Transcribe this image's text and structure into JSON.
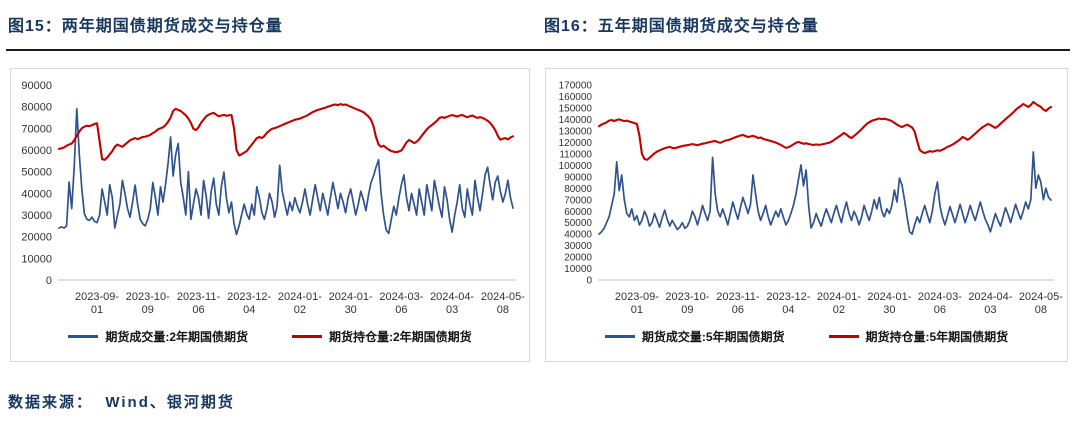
{
  "footer": {
    "source": "数据来源：  Wind、银河期货"
  },
  "chart_data": [
    {
      "type": "line",
      "title": "图15：两年期国债期货成交与持仓量",
      "grid": false,
      "legend_position": "bottom",
      "ylim": [
        0,
        90000
      ],
      "ytick_step": 10000,
      "x_tick_labels": [
        "2023-09-01",
        "2023-10-09",
        "2023-11-06",
        "2023-12-04",
        "2024-01-02",
        "2024-01-30",
        "2024-03-06",
        "2024-04-03",
        "2024-05-08"
      ],
      "x_ticks": [
        [
          "2023-09-",
          "01"
        ],
        [
          "2023-10-",
          "09"
        ],
        [
          "2023-11-",
          "06"
        ],
        [
          "2023-12-",
          "04"
        ],
        [
          "2024-01-",
          "02"
        ],
        [
          "2024-01-",
          "30"
        ],
        [
          "2024-03-",
          "06"
        ],
        [
          "2024-04-",
          "03"
        ],
        [
          "2024-05-",
          "08"
        ]
      ],
      "tick_indices": [
        15,
        35,
        55,
        75,
        95,
        115,
        135,
        155,
        175
      ],
      "series": [
        {
          "name": "期货成交量:2年期国债期货",
          "color": "#30538B",
          "stroke_width": 1.7,
          "values": [
            24000,
            24500,
            24000,
            25000,
            45200,
            33000,
            52000,
            79000,
            58000,
            42000,
            30500,
            28000,
            27500,
            29000,
            27000,
            26500,
            30000,
            42000,
            36000,
            30000,
            44000,
            38000,
            24000,
            29500,
            35000,
            46000,
            40000,
            33000,
            29000,
            36000,
            43800,
            35000,
            28000,
            26000,
            25000,
            28000,
            33000,
            45000,
            38000,
            30000,
            43000,
            36000,
            44000,
            54000,
            66000,
            48000,
            58000,
            63000,
            45000,
            38000,
            30000,
            50000,
            28000,
            35000,
            42000,
            38000,
            30000,
            46000,
            39000,
            28500,
            41000,
            47000,
            35000,
            30000,
            43000,
            49800,
            38000,
            31000,
            36000,
            26000,
            21000,
            25000,
            30000,
            35000,
            30500,
            28000,
            35000,
            30000,
            43000,
            38000,
            31000,
            28000,
            33000,
            40000,
            36000,
            29000,
            34000,
            53000,
            41000,
            35500,
            30000,
            36000,
            32000,
            38000,
            34000,
            31000,
            36000,
            42000,
            35000,
            30000,
            37000,
            44000,
            38000,
            32000,
            40000,
            35000,
            30000,
            38000,
            45000,
            39000,
            33000,
            40000,
            36000,
            31000,
            38000,
            42000,
            36000,
            30000,
            35000,
            41000,
            37000,
            32000,
            39000,
            45000,
            48000,
            52000,
            55500,
            40000,
            30000,
            23000,
            21500,
            28000,
            34000,
            30000,
            38000,
            44000,
            48500,
            38000,
            32000,
            40000,
            35000,
            30000,
            42000,
            36000,
            30000,
            44000,
            38000,
            32000,
            46000,
            40000,
            34000,
            29000,
            43000,
            37000,
            28000,
            22100,
            30000,
            36000,
            44000,
            33000,
            29000,
            42000,
            35000,
            30000,
            46000,
            38000,
            32000,
            40000,
            48500,
            52000,
            43800,
            37000,
            45000,
            48000,
            41000,
            36000,
            40000,
            46000,
            38000,
            33200
          ]
        },
        {
          "name": "期货持仓量:2年期国债期货",
          "color": "#C00000",
          "stroke_width": 2.1,
          "values": [
            60500,
            60800,
            61200,
            62000,
            62500,
            63000,
            64500,
            66500,
            68500,
            70000,
            70800,
            71200,
            71000,
            71500,
            72000,
            72300,
            64000,
            55800,
            55500,
            56500,
            58000,
            59500,
            61500,
            62500,
            62000,
            61500,
            62500,
            63500,
            64500,
            65000,
            65500,
            65000,
            65500,
            66000,
            66200,
            66500,
            67000,
            67800,
            68500,
            69500,
            70000,
            70500,
            71500,
            73000,
            75000,
            78000,
            79000,
            78500,
            78000,
            77000,
            76000,
            74500,
            72500,
            69800,
            69200,
            70500,
            72500,
            74000,
            75500,
            76300,
            76800,
            77100,
            76300,
            75500,
            75900,
            76200,
            75800,
            76000,
            76100,
            70000,
            60000,
            57500,
            58000,
            58800,
            59500,
            61000,
            62500,
            64000,
            65500,
            66000,
            65500,
            66500,
            68000,
            69000,
            69800,
            70100,
            70500,
            71000,
            71500,
            72000,
            72500,
            73000,
            73500,
            74000,
            74200,
            74500,
            75000,
            75500,
            76000,
            76800,
            77500,
            78000,
            78500,
            78800,
            79200,
            79500,
            80000,
            80300,
            80800,
            81000,
            80700,
            81200,
            80800,
            81000,
            80500,
            80000,
            79500,
            79000,
            78500,
            78000,
            77500,
            76500,
            75500,
            74000,
            71000,
            66000,
            62500,
            61500,
            62000,
            61000,
            60200,
            59500,
            59200,
            59000,
            59300,
            59800,
            61500,
            63500,
            64600,
            64000,
            63200,
            63800,
            65000,
            66500,
            68000,
            69500,
            70600,
            71500,
            72500,
            73500,
            74800,
            75200,
            74800,
            75300,
            75800,
            76100,
            75800,
            75400,
            75900,
            76100,
            75600,
            75100,
            75600,
            75900,
            75300,
            74800,
            75200,
            74800,
            74200,
            73500,
            72500,
            71000,
            69200,
            66500,
            64800,
            65200,
            65500,
            64900,
            65800,
            66300
          ]
        }
      ]
    },
    {
      "type": "line",
      "title": "图16：五年期国债期货成交与持仓量",
      "grid": false,
      "legend_position": "bottom",
      "ylim": [
        0,
        170000
      ],
      "ytick_step": 10000,
      "x_tick_labels": [
        "2023-09-01",
        "2023-10-09",
        "2023-11-06",
        "2023-12-04",
        "2024-01-02",
        "2024-01-30",
        "2024-03-06",
        "2024-04-03",
        "2024-05-08"
      ],
      "x_ticks": [
        [
          "2023-09-",
          "01"
        ],
        [
          "2023-10-",
          "09"
        ],
        [
          "2023-11-",
          "06"
        ],
        [
          "2023-12-",
          "04"
        ],
        [
          "2024-01-",
          "02"
        ],
        [
          "2024-01-",
          "30"
        ],
        [
          "2024-03-",
          "06"
        ],
        [
          "2024-04-",
          "03"
        ],
        [
          "2024-05-",
          "08"
        ]
      ],
      "tick_indices": [
        15,
        35,
        55,
        75,
        95,
        115,
        135,
        155,
        175
      ],
      "series": [
        {
          "name": "期货成交量:5年期国债期货",
          "color": "#30538B",
          "stroke_width": 1.7,
          "values": [
            40000,
            42000,
            45000,
            50000,
            55000,
            65000,
            75000,
            103000,
            78000,
            91500,
            70000,
            58000,
            55000,
            62000,
            52000,
            56000,
            48000,
            52000,
            60000,
            55000,
            47000,
            50000,
            58000,
            52000,
            46000,
            54000,
            61000,
            53000,
            47000,
            52000,
            48000,
            44000,
            46000,
            50000,
            45000,
            47000,
            52000,
            60000,
            55000,
            48000,
            56000,
            65000,
            58000,
            52000,
            60000,
            107000,
            75000,
            60000,
            55000,
            62000,
            55000,
            48000,
            58000,
            68000,
            60000,
            53000,
            63000,
            72000,
            65000,
            58000,
            66000,
            91500,
            75000,
            60000,
            52000,
            58000,
            65000,
            55000,
            48000,
            54000,
            60000,
            55000,
            62000,
            55000,
            48000,
            52000,
            58000,
            65000,
            75000,
            88000,
            100300,
            82000,
            95900,
            65000,
            45300,
            50000,
            58000,
            52000,
            47000,
            55000,
            62000,
            56000,
            50000,
            58000,
            65000,
            57000,
            50000,
            60000,
            68000,
            58000,
            52000,
            60000,
            55000,
            48000,
            55000,
            65000,
            58000,
            52000,
            60000,
            70000,
            62000,
            72000,
            60000,
            55000,
            62000,
            58000,
            65000,
            78500,
            68000,
            88900,
            82800,
            70000,
            55000,
            42000,
            40000,
            48000,
            55000,
            50000,
            58000,
            65000,
            57000,
            50000,
            60000,
            75000,
            85400,
            65000,
            55000,
            48000,
            56000,
            64000,
            57000,
            50000,
            58000,
            66000,
            58000,
            50000,
            57000,
            65000,
            58000,
            52000,
            60000,
            68000,
            60000,
            53000,
            48000,
            42000,
            50000,
            58000,
            52000,
            47000,
            55000,
            63000,
            57000,
            50000,
            58000,
            66000,
            59000,
            53000,
            60000,
            68000,
            62000,
            70000,
            111600,
            80000,
            91500,
            85000,
            70000,
            80000,
            72000,
            69700
          ]
        },
        {
          "name": "期货持仓量:5年期国债期货",
          "color": "#C00000",
          "stroke_width": 2.1,
          "values": [
            134000,
            135500,
            136500,
            137500,
            139000,
            139500,
            138500,
            139500,
            140000,
            139200,
            138500,
            139000,
            138200,
            137500,
            136800,
            136000,
            126000,
            110000,
            105500,
            104800,
            106500,
            108500,
            110500,
            112000,
            113000,
            114000,
            114800,
            115500,
            116000,
            115200,
            114800,
            115500,
            116200,
            116800,
            117200,
            117500,
            118000,
            118500,
            118000,
            117500,
            118200,
            118800,
            119200,
            119800,
            120300,
            120800,
            121200,
            120200,
            119600,
            120500,
            121500,
            122000,
            122600,
            123500,
            124500,
            125200,
            126000,
            126400,
            125500,
            124600,
            125200,
            125600,
            124800,
            123800,
            124200,
            123200,
            122400,
            121800,
            121200,
            120600,
            119800,
            118800,
            117800,
            116500,
            115200,
            115800,
            116800,
            118200,
            119600,
            120300,
            119500,
            118700,
            119200,
            118600,
            118100,
            117700,
            118200,
            117800,
            118100,
            118600,
            119100,
            119500,
            120500,
            122000,
            123500,
            125000,
            126500,
            128200,
            126800,
            124800,
            123800,
            125500,
            127500,
            129500,
            131500,
            133800,
            136000,
            137500,
            138800,
            139500,
            140200,
            140800,
            140300,
            140600,
            140000,
            139400,
            138400,
            137000,
            135500,
            134200,
            133400,
            134400,
            135400,
            134200,
            133000,
            129500,
            121000,
            113500,
            111600,
            110700,
            111500,
            112400,
            111800,
            112400,
            113000,
            112600,
            113600,
            114600,
            116000,
            117000,
            118000,
            119400,
            121000,
            122600,
            124700,
            123600,
            122200,
            123600,
            125600,
            127600,
            129600,
            131600,
            133400,
            134600,
            136000,
            135200,
            133800,
            132600,
            134200,
            136200,
            138200,
            140200,
            142200,
            143900,
            146000,
            148200,
            150200,
            151600,
            153400,
            152200,
            150800,
            152600,
            155200,
            153600,
            152000,
            150800,
            148600,
            147300,
            149500,
            150800
          ]
        }
      ]
    }
  ]
}
